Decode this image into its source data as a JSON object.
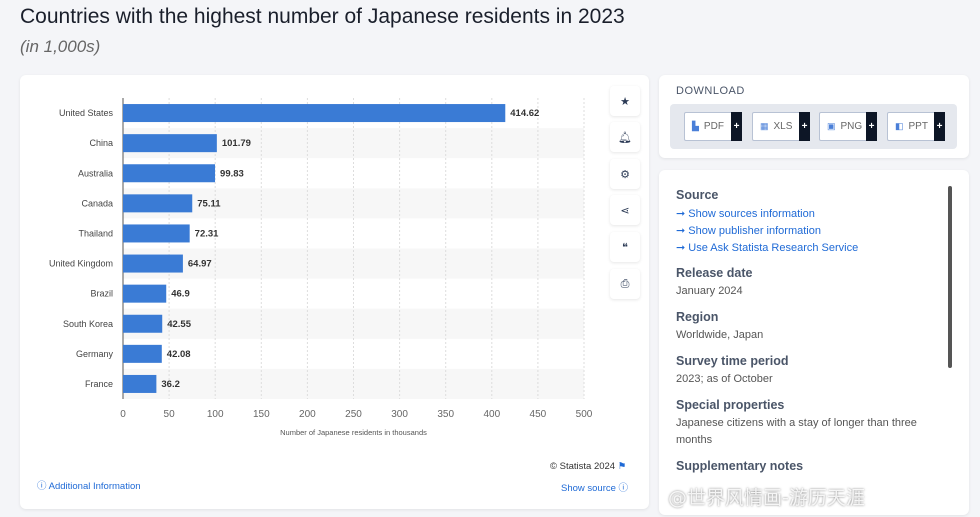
{
  "header": {
    "title": "Countries with the highest number of Japanese residents in 2023",
    "subtitle": "(in 1,000s)"
  },
  "chart_data": {
    "type": "bar",
    "orientation": "horizontal",
    "categories": [
      "United States",
      "China",
      "Australia",
      "Canada",
      "Thailand",
      "United Kingdom",
      "Brazil",
      "South Korea",
      "Germany",
      "France"
    ],
    "values": [
      414.62,
      101.79,
      99.83,
      75.11,
      72.31,
      64.97,
      46.9,
      42.55,
      42.08,
      36.2
    ],
    "value_labels": [
      "414.62",
      "101.79",
      "99.83",
      "75.11",
      "72.31",
      "64.97",
      "46.9",
      "42.55",
      "42.08",
      "36.2"
    ],
    "xlabel": "Number of Japanese residents in thousands",
    "xlim": [
      0,
      500
    ],
    "xticks": [
      "0",
      "50",
      "100",
      "150",
      "200",
      "250",
      "300",
      "350",
      "400",
      "450",
      "500"
    ],
    "grid": true,
    "bar_color": "#3a7bd5"
  },
  "footer": {
    "additional_info": "Additional Information",
    "copyright": "© Statista 2024",
    "show_source": "Show source"
  },
  "tools": [
    "star-icon",
    "bell-icon",
    "gear-icon",
    "share-icon",
    "quote-icon",
    "print-icon"
  ],
  "download": {
    "heading": "DOWNLOAD",
    "buttons": [
      {
        "label": "PDF",
        "plus": "+"
      },
      {
        "label": "XLS",
        "plus": "+"
      },
      {
        "label": "PNG",
        "plus": "+"
      },
      {
        "label": "PPT",
        "plus": "+"
      }
    ]
  },
  "info": {
    "source_heading": "Source",
    "links": [
      "Show sources information",
      "Show publisher information",
      "Use Ask Statista Research Service"
    ],
    "release_heading": "Release date",
    "release": "January 2024",
    "region_heading": "Region",
    "region": "Worldwide, Japan",
    "survey_heading": "Survey time period",
    "survey": "2023; as of October",
    "special_heading": "Special properties",
    "special": "Japanese citizens with a stay of longer than three months",
    "supp_heading": "Supplementary notes"
  },
  "watermark": "@世界风情画-游历天涯"
}
